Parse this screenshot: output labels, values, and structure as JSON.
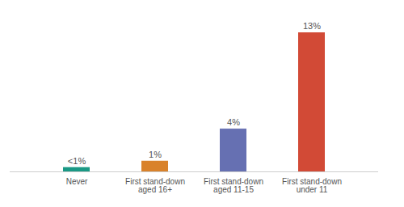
{
  "chart_data": {
    "type": "bar",
    "categories": [
      "Never",
      "First stand-down aged 16+",
      "First stand-down aged 11-15",
      "First stand-down under 11"
    ],
    "values": [
      0.4,
      1,
      4,
      13
    ],
    "value_labels": [
      "<1%",
      "1%",
      "4%",
      "13%"
    ],
    "colors": [
      "#1a9985",
      "#d9822b",
      "#6670b2",
      "#d24a36"
    ],
    "ylim": [
      0,
      13
    ],
    "data_labels": true,
    "tick_labels": "x",
    "grid": false
  }
}
